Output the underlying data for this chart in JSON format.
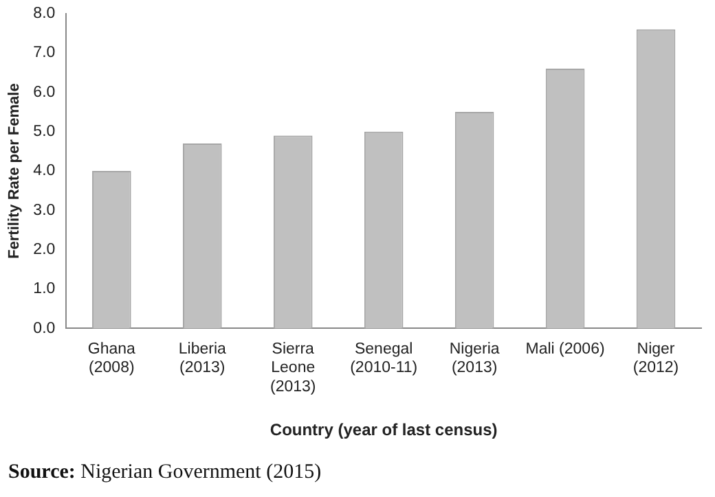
{
  "chart_data": {
    "type": "bar",
    "xlabel": "Country (year of last census)",
    "ylabel": "Fertility Rate per Female",
    "categories": [
      "Ghana\n(2008)",
      "Liberia\n(2013)",
      "Sierra\nLeone\n(2013)",
      "Senegal\n(2010-11)",
      "Nigeria\n(2013)",
      "Mali (2006)",
      "Niger\n(2012)"
    ],
    "values": [
      4.0,
      4.7,
      4.9,
      5.0,
      5.5,
      6.6,
      7.6
    ],
    "color": "#c0c0c0",
    "ylim": [
      0,
      8
    ],
    "yticks": [
      {
        "value": 0,
        "label": "0.0"
      },
      {
        "value": 1,
        "label": "1.0"
      },
      {
        "value": 2,
        "label": "2.0"
      },
      {
        "value": 3,
        "label": "3.0"
      },
      {
        "value": 4,
        "label": "4.0"
      },
      {
        "value": 5,
        "label": "5.0"
      },
      {
        "value": 6,
        "label": "6.0"
      },
      {
        "value": 7,
        "label": "7.0"
      },
      {
        "value": 8,
        "label": "8.0"
      }
    ],
    "grid": false,
    "legend": false,
    "annotations": [
      "Source: Nigerian Government (2015)"
    ]
  }
}
